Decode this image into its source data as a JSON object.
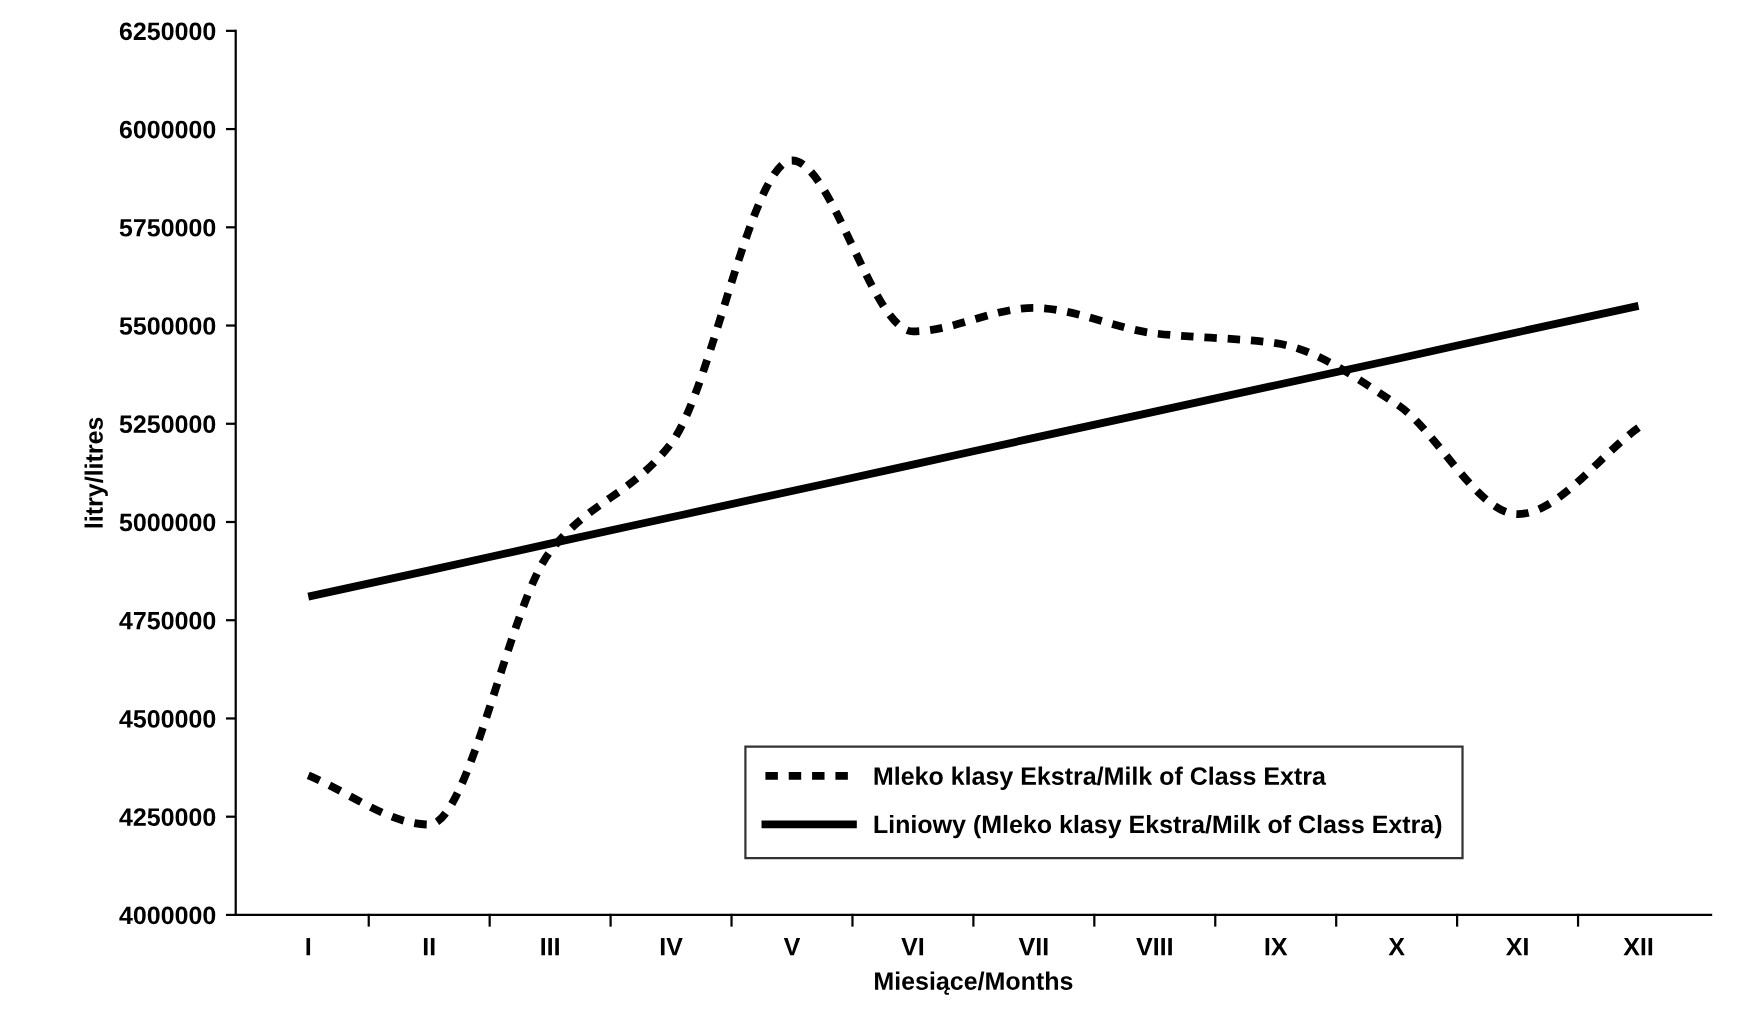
{
  "chart_data": {
    "type": "line",
    "xlabel": "Miesiące/Months",
    "ylabel": "litry/litres",
    "categories": [
      "I",
      "II",
      "III",
      "IV",
      "V",
      "VI",
      "VII",
      "VIII",
      "IX",
      "X",
      "XI",
      "XII"
    ],
    "series": [
      {
        "name": "Mleko klasy Ekstra/Milk of Class Extra",
        "color": "#000000",
        "line_style": "dashed",
        "values": [
          4355000,
          4230000,
          4925000,
          5200000,
          5920000,
          5485000,
          5545000,
          5480000,
          5455000,
          5300000,
          5020000,
          5240000
        ]
      },
      {
        "name": "Liniowy (Mleko klasy Ekstra/Milk of Class Extra)",
        "color": "#000000",
        "line_style": "solid",
        "values": [
          4810000,
          4877000,
          4945000,
          5012000,
          5079000,
          5146000,
          5214000,
          5281000,
          5348000,
          5415000,
          5483000,
          5550000
        ]
      }
    ],
    "ylim": [
      4000000,
      6250000
    ],
    "yticks": [
      4000000,
      4250000,
      4500000,
      4750000,
      5000000,
      5250000,
      5500000,
      5750000,
      6000000,
      6250000
    ],
    "grid": false,
    "legend": "bottom right",
    "marker": "none"
  }
}
